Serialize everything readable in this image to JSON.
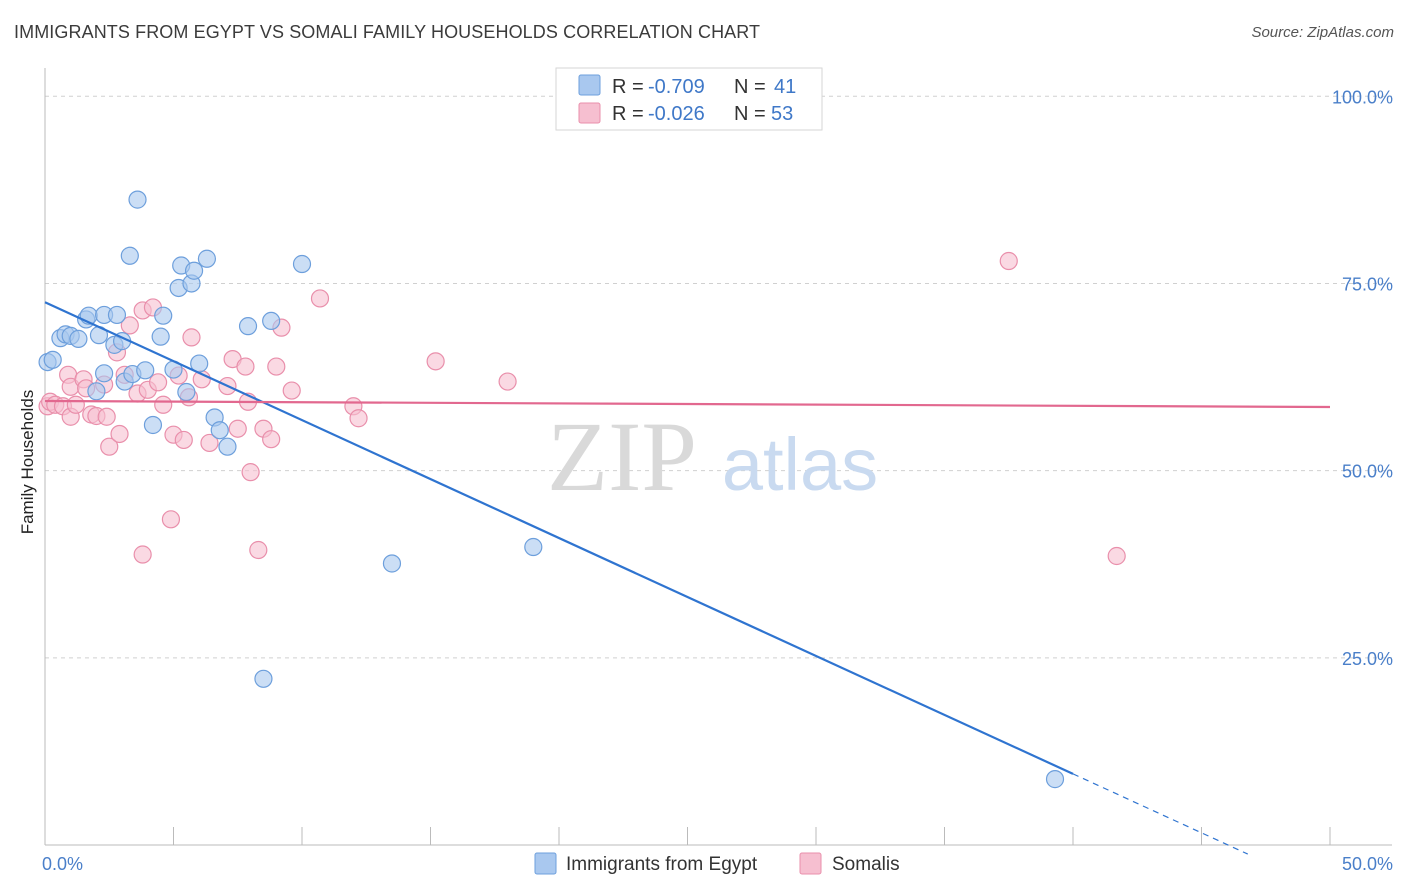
{
  "title": "IMMIGRANTS FROM EGYPT VS SOMALI FAMILY HOUSEHOLDS CORRELATION CHART",
  "source": "Source: ZipAtlas.com",
  "watermark": {
    "zip": "ZIP",
    "atlas": "atlas"
  },
  "colors": {
    "blue_fill": "#a9c8ef",
    "blue_stroke": "#6d9fdc",
    "blue_line": "#2f74d0",
    "pink_fill": "#f6bfd0",
    "pink_stroke": "#e98fab",
    "pink_line": "#e2688f",
    "tick_label": "#4a7fc9",
    "grid": "#d0d0d0"
  },
  "legend": {
    "rows": [
      {
        "r_label": "R =",
        "r_value": "-0.709",
        "n_label": "N =",
        "n_value": "41"
      },
      {
        "r_label": "R =",
        "r_value": "-0.026",
        "n_label": "N =",
        "n_value": "53"
      }
    ]
  },
  "chart_data": {
    "type": "scatter",
    "title": "IMMIGRANTS FROM EGYPT VS SOMALI FAMILY HOUSEHOLDS CORRELATION CHART",
    "xlabel": "",
    "ylabel": "Family Households",
    "xlim": [
      0,
      50
    ],
    "ylim": [
      0,
      105
    ],
    "x_tick_labels": [
      "0.0%",
      "50.0%"
    ],
    "y_ticks": [
      25,
      50,
      75,
      100
    ],
    "y_tick_labels": [
      "25.0%",
      "50.0%",
      "75.0%",
      "100.0%"
    ],
    "series": [
      {
        "name": "Immigrants from Egypt",
        "color": "blue",
        "trend": {
          "x0": 0,
          "y0": 72.5,
          "x1": 40.0,
          "y1": 9.5,
          "dash_to_x": 46.8
        },
        "points": [
          [
            0.1,
            64.5
          ],
          [
            0.3,
            64.8
          ],
          [
            0.6,
            67.7
          ],
          [
            0.8,
            68.2
          ],
          [
            1.0,
            68.0
          ],
          [
            1.3,
            67.6
          ],
          [
            1.6,
            70.2
          ],
          [
            1.7,
            70.7
          ],
          [
            2.0,
            60.6
          ],
          [
            2.1,
            68.1
          ],
          [
            2.3,
            63.0
          ],
          [
            2.3,
            70.8
          ],
          [
            2.7,
            66.8
          ],
          [
            2.8,
            70.8
          ],
          [
            3.0,
            67.3
          ],
          [
            3.1,
            61.9
          ],
          [
            3.4,
            62.9
          ],
          [
            3.6,
            86.2
          ],
          [
            3.3,
            78.7
          ],
          [
            3.9,
            63.4
          ],
          [
            4.2,
            56.1
          ],
          [
            4.5,
            67.9
          ],
          [
            4.6,
            70.7
          ],
          [
            5.0,
            63.5
          ],
          [
            5.2,
            74.4
          ],
          [
            5.3,
            77.4
          ],
          [
            5.5,
            60.5
          ],
          [
            5.7,
            75.0
          ],
          [
            5.8,
            76.7
          ],
          [
            6.0,
            64.3
          ],
          [
            6.3,
            78.3
          ],
          [
            6.6,
            57.1
          ],
          [
            6.8,
            55.4
          ],
          [
            7.1,
            53.2
          ],
          [
            7.9,
            69.3
          ],
          [
            8.5,
            22.2
          ],
          [
            8.8,
            70.0
          ],
          [
            10.0,
            77.6
          ],
          [
            13.5,
            37.6
          ],
          [
            19.0,
            39.8
          ],
          [
            39.3,
            8.8
          ]
        ]
      },
      {
        "name": "Somalis",
        "color": "pink",
        "trend": {
          "x0": 0,
          "y0": 59.3,
          "x1": 50,
          "y1": 58.5
        },
        "points": [
          [
            0.1,
            58.6
          ],
          [
            0.2,
            59.2
          ],
          [
            0.4,
            58.8
          ],
          [
            0.7,
            58.6
          ],
          [
            0.9,
            62.8
          ],
          [
            1.0,
            57.2
          ],
          [
            1.0,
            61.2
          ],
          [
            1.2,
            58.8
          ],
          [
            1.5,
            62.2
          ],
          [
            1.6,
            61.0
          ],
          [
            1.8,
            57.5
          ],
          [
            2.0,
            57.3
          ],
          [
            2.3,
            61.5
          ],
          [
            2.4,
            57.2
          ],
          [
            2.5,
            53.2
          ],
          [
            2.8,
            65.8
          ],
          [
            2.9,
            54.9
          ],
          [
            3.1,
            62.8
          ],
          [
            3.3,
            69.4
          ],
          [
            3.6,
            60.3
          ],
          [
            3.8,
            71.4
          ],
          [
            3.8,
            38.8
          ],
          [
            4.0,
            60.8
          ],
          [
            4.2,
            71.8
          ],
          [
            4.4,
            61.8
          ],
          [
            4.6,
            58.8
          ],
          [
            4.9,
            43.5
          ],
          [
            5.0,
            54.8
          ],
          [
            5.2,
            62.7
          ],
          [
            5.4,
            54.1
          ],
          [
            5.6,
            59.8
          ],
          [
            5.7,
            67.8
          ],
          [
            6.1,
            62.2
          ],
          [
            6.4,
            53.7
          ],
          [
            7.1,
            61.3
          ],
          [
            7.3,
            64.9
          ],
          [
            7.5,
            55.6
          ],
          [
            7.8,
            63.9
          ],
          [
            7.9,
            59.2
          ],
          [
            8.0,
            49.8
          ],
          [
            8.3,
            39.4
          ],
          [
            8.5,
            55.6
          ],
          [
            8.8,
            54.2
          ],
          [
            9.0,
            63.9
          ],
          [
            9.2,
            69.1
          ],
          [
            9.6,
            60.7
          ],
          [
            10.7,
            73.0
          ],
          [
            12.0,
            58.6
          ],
          [
            12.2,
            57.0
          ],
          [
            15.2,
            64.6
          ],
          [
            18.0,
            61.9
          ],
          [
            37.5,
            78.0
          ],
          [
            41.7,
            38.6
          ]
        ]
      }
    ]
  },
  "bottom_legend": [
    "Immigrants from Egypt",
    "Somalis"
  ]
}
